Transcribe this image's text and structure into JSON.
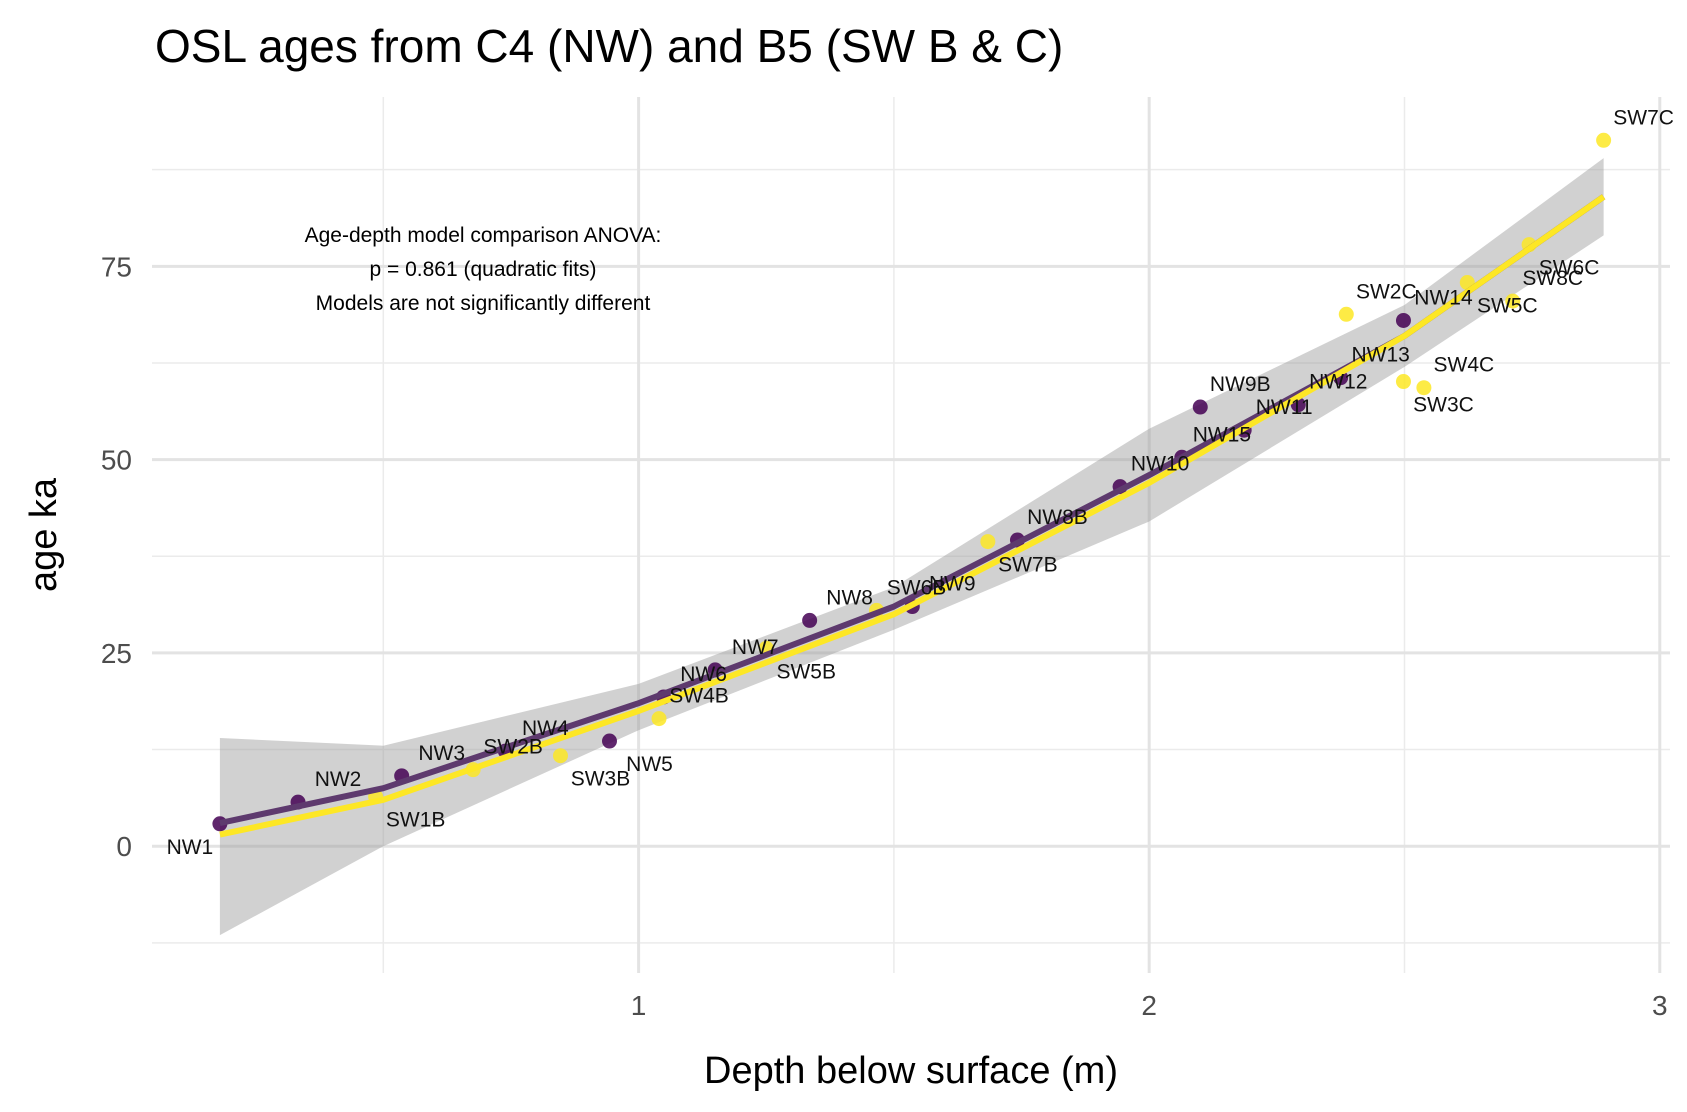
{
  "chart_data": {
    "type": "scatter",
    "title": "OSL ages from C4 (NW) and B5 (SW B & C)",
    "x_label": "Depth below surface (m)",
    "y_label": "age ka",
    "annotation": [
      "Age-depth model comparison ANOVA:",
      "p = 0.861 (quadratic fits)",
      "Models are not significantly different"
    ],
    "xlim": [
      0.047,
      3.02
    ],
    "ylim": [
      -16.4,
      96.9
    ],
    "xticks": [
      1,
      2,
      3
    ],
    "yticks": [
      0,
      25,
      50,
      75
    ],
    "grid": true,
    "ribbon": {
      "x": [
        0.18,
        0.5,
        1,
        1.5,
        2,
        2.5,
        2.89
      ],
      "lower": [
        -11.5,
        0,
        15,
        28,
        42,
        62,
        79
      ],
      "upper": [
        14,
        13,
        21,
        33.5,
        54,
        70,
        89
      ]
    },
    "fits": [
      {
        "color": "#5e3a6e",
        "x": [
          0.18,
          0.5,
          1,
          1.5,
          2,
          2.5,
          2.89
        ],
        "values": [
          3,
          7.5,
          18.5,
          31,
          48,
          66,
          84
        ]
      },
      {
        "color": "#FDE725",
        "x": [
          0.18,
          0.5,
          1,
          1.5,
          2,
          2.5,
          2.89
        ],
        "values": [
          1.5,
          6,
          17.5,
          30,
          47,
          66,
          84
        ]
      }
    ],
    "series": [
      {
        "color": "#440154",
        "labels": [
          "NW1",
          "NW2",
          "NW3",
          "NW4",
          "NW5",
          "NW6",
          "NW7",
          "NW8",
          "NW9",
          "NW8B",
          "NW10",
          "NW15",
          "NW9B",
          "NW11",
          "NW12",
          "NW13",
          "NW14"
        ],
        "x": [
          0.18,
          0.333,
          0.536,
          0.739,
          0.943,
          1.049,
          1.15,
          1.335,
          1.536,
          1.742,
          1.943,
          2.064,
          2.1,
          2.186,
          2.292,
          2.375,
          2.498
        ],
        "values": [
          2.9,
          5.7,
          9.1,
          12.3,
          13.6,
          19.3,
          22.8,
          29.2,
          31.0,
          39.6,
          46.5,
          50.3,
          56.8,
          53.8,
          57.1,
          60.6,
          68.0
        ]
      },
      {
        "color": "#FDE725",
        "labels": [
          "SW1B",
          "SW2B",
          "SW3B",
          "SW4B",
          "SW5B",
          "SW6B",
          "SW7B",
          "SW2C",
          "SW3C",
          "SW4C",
          "SW5C",
          "SW8C",
          "SW6C",
          "SW7C"
        ],
        "x": [
          0.485,
          0.676,
          0.847,
          1.04,
          1.25,
          1.466,
          1.684,
          2.386,
          2.498,
          2.538,
          2.623,
          2.712,
          2.744,
          2.89
        ],
        "values": [
          6.4,
          9.9,
          11.7,
          16.5,
          25.6,
          30.5,
          39.4,
          68.8,
          60.1,
          59.3,
          72.9,
          70.5,
          77.8,
          91.3
        ]
      }
    ]
  }
}
